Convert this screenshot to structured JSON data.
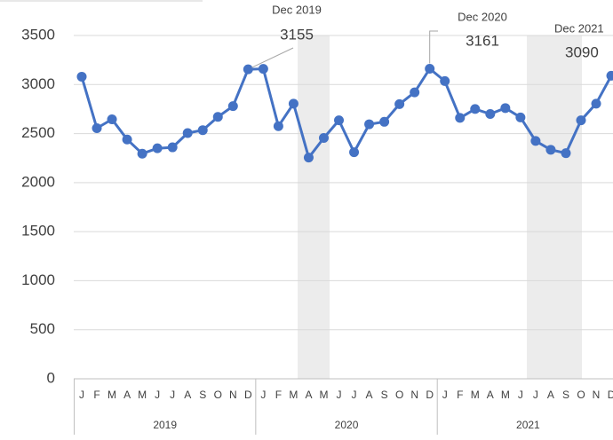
{
  "chart_data": {
    "type": "line",
    "categories": [
      "J",
      "F",
      "M",
      "A",
      "M",
      "J",
      "J",
      "A",
      "S",
      "O",
      "N",
      "D",
      "J",
      "F",
      "M",
      "A",
      "M",
      "J",
      "J",
      "A",
      "S",
      "O",
      "N",
      "D",
      "J",
      "F",
      "M",
      "A",
      "M",
      "J",
      "J",
      "A",
      "S",
      "O",
      "N",
      "D"
    ],
    "years": [
      "2019",
      "2020",
      "2021"
    ],
    "series": [
      {
        "color": "#4472c4",
        "values": [
          3080,
          2555,
          2645,
          2440,
          2295,
          2350,
          2360,
          2505,
          2535,
          2670,
          2780,
          3155,
          3160,
          2575,
          2805,
          2255,
          2455,
          2635,
          2310,
          2595,
          2620,
          2800,
          2920,
          3161,
          3035,
          2660,
          2750,
          2700,
          2760,
          2665,
          2425,
          2335,
          2300,
          2635,
          2805,
          3090
        ]
      }
    ],
    "annotations": [
      "Dec 2019",
      "Dec 2020",
      "Dec 2021"
    ],
    "ylim": [
      0,
      3500
    ],
    "yticks": [
      0,
      500,
      1000,
      1500,
      2000,
      2500,
      3000,
      3500
    ],
    "grid": true
  }
}
